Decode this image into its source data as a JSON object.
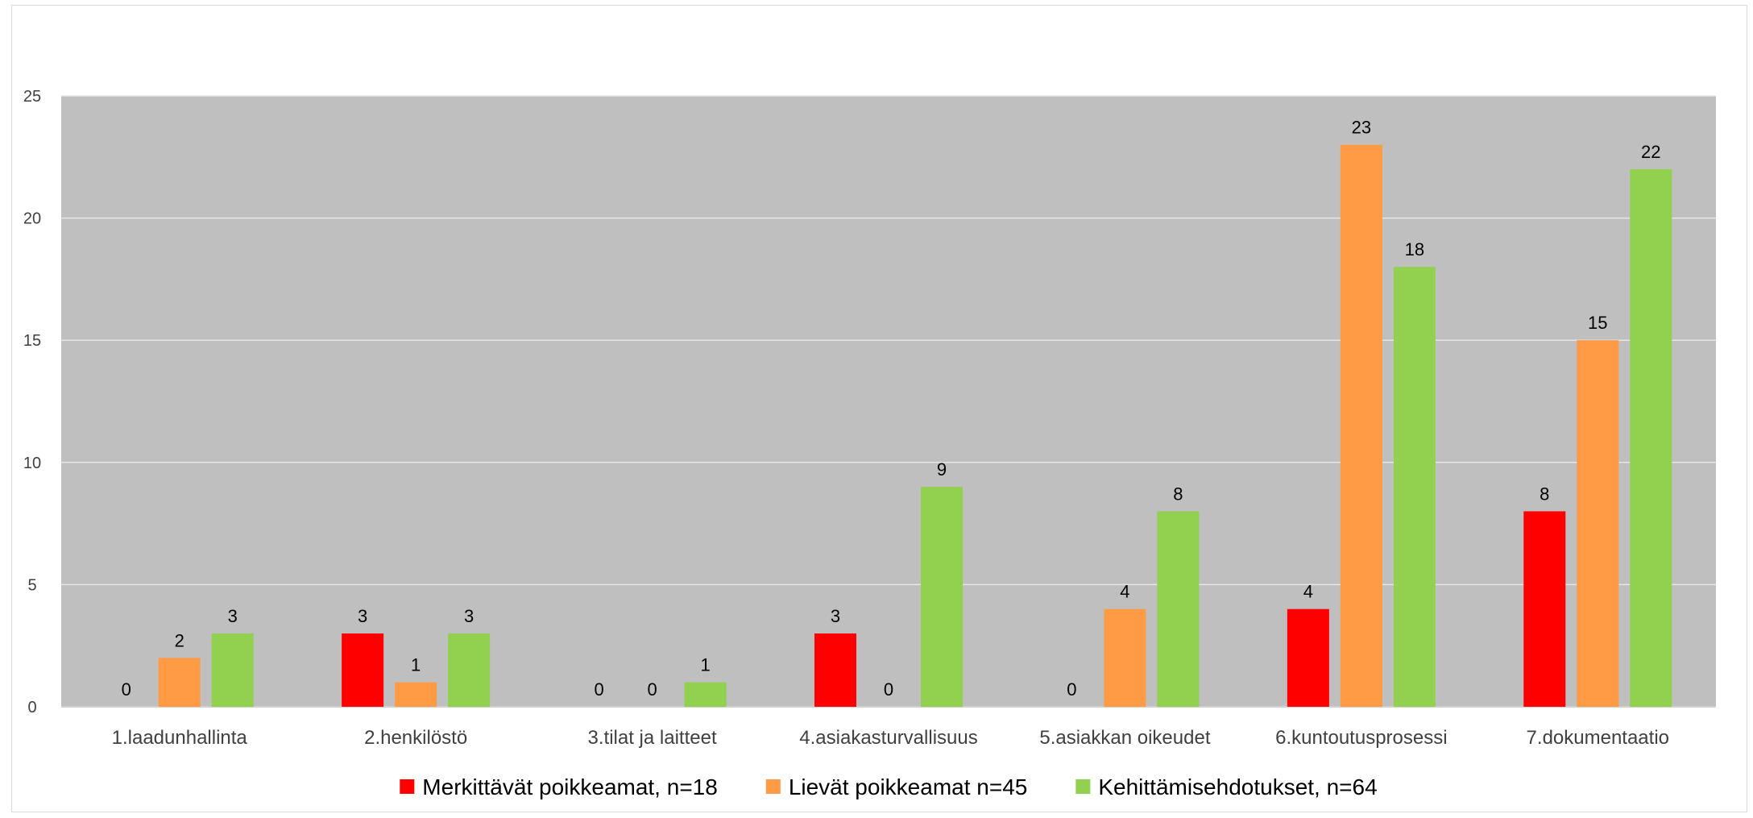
{
  "chart_data": {
    "type": "bar",
    "title": "",
    "xlabel": "",
    "ylabel": "",
    "ylim": [
      0,
      25
    ],
    "yticks": [
      0,
      5,
      10,
      15,
      20,
      25
    ],
    "grid": true,
    "legend_position": "bottom",
    "plot_background": "#bfbfbf",
    "categories": [
      "1.laadunhallinta",
      "2.henkilöstö",
      "3.tilat ja laitteet",
      "4.asiakasturvallisuus",
      "5.asiakkan oikeudet",
      "6.kuntoutusprosessi",
      "7.dokumentaatio"
    ],
    "series": [
      {
        "name": "Merkittävät poikkeamat, n=18",
        "color": "#ff0000",
        "values": [
          0,
          3,
          0,
          3,
          0,
          4,
          8
        ]
      },
      {
        "name": "Lievät poikkeamat n=45",
        "color": "#ff9a45",
        "values": [
          2,
          1,
          0,
          0,
          4,
          23,
          15
        ]
      },
      {
        "name": "Kehittämisehdotukset, n=64",
        "color": "#92d050",
        "values": [
          3,
          3,
          1,
          9,
          8,
          18,
          22
        ]
      }
    ]
  }
}
